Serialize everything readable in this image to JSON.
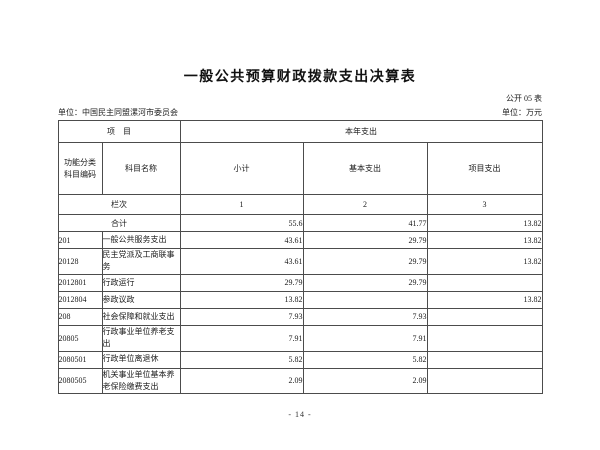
{
  "page": {
    "title": "一般公共预算财政拨款支出决算表",
    "table_no": "公开 05 表",
    "unit_name_label": "单位：中国民主同盟漯河市委员会",
    "unit_of_measure_label": "单位：万元",
    "page_number": "- 14 -"
  },
  "table": {
    "header": {
      "item_group": "项    目",
      "year_expense_group": "本年支出",
      "col_code": "功能分类\n科目编码",
      "col_name": "科目名称",
      "col_subtotal": "小计",
      "col_basic": "基本支出",
      "col_project": "项目支出",
      "row_label": "栏次",
      "col_nums": [
        "1",
        "2",
        "3"
      ]
    },
    "rows": [
      {
        "code": "",
        "name": "合计",
        "span2": true,
        "subtotal": "55.6",
        "basic": "41.77",
        "project": "13.82"
      },
      {
        "code": "201",
        "name": "一般公共服务支出",
        "span2": false,
        "subtotal": "43.61",
        "basic": "29.79",
        "project": "13.82"
      },
      {
        "code": "20128",
        "name": "民主党派及工商联事务",
        "span2": false,
        "subtotal": "43.61",
        "basic": "29.79",
        "project": "13.82"
      },
      {
        "code": "2012801",
        "name": "行政运行",
        "span2": false,
        "subtotal": "29.79",
        "basic": "29.79",
        "project": ""
      },
      {
        "code": "2012804",
        "name": "参政议政",
        "span2": false,
        "subtotal": "13.82",
        "basic": "",
        "project": "13.82"
      },
      {
        "code": "208",
        "name": "社会保障和就业支出",
        "span2": false,
        "subtotal": "7.93",
        "basic": "7.93",
        "project": ""
      },
      {
        "code": "20805",
        "name": "行政事业单位养老支出",
        "span2": false,
        "subtotal": "7.91",
        "basic": "7.91",
        "project": ""
      },
      {
        "code": "2080501",
        "name": "行政单位离退休",
        "span2": false,
        "subtotal": "5.82",
        "basic": "5.82",
        "project": ""
      },
      {
        "code": "2080505",
        "name": "机关事业单位基本养老保险缴费支出",
        "span2": false,
        "subtotal": "2.09",
        "basic": "2.09",
        "project": ""
      }
    ]
  }
}
